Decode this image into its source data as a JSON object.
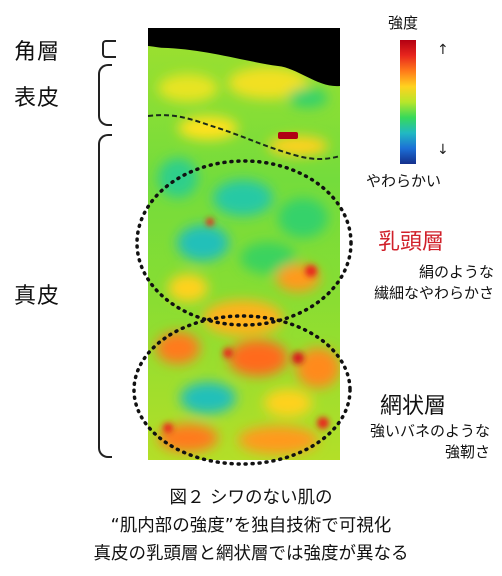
{
  "layers": {
    "stratum_corneum": "角層",
    "epidermis": "表皮",
    "dermis": "真皮"
  },
  "legend": {
    "title": "強度",
    "bottom_label": "やわらかい",
    "arrow_up": "↑",
    "arrow_down": "↓",
    "gradient_colors": [
      "#b30012",
      "#e8261d",
      "#ff7a1a",
      "#ffd21f",
      "#b8e62a",
      "#37d95a",
      "#21b9c2",
      "#1c6fd6",
      "#142f8c"
    ]
  },
  "papillary": {
    "title": "乳頭層",
    "desc_line1": "絹のような",
    "desc_line2": "繊細なやわらかさ",
    "title_color": "#d0202a"
  },
  "reticular": {
    "title": "網状層",
    "desc_line1": "強いバネのような",
    "desc_line2": "強靭さ"
  },
  "caption": {
    "line1": "図２ シワのない肌の",
    "line2": "“肌内部の強度”を独自技術で可視化",
    "line3": "真皮の乳頭層と網状層では強度が異なる"
  }
}
